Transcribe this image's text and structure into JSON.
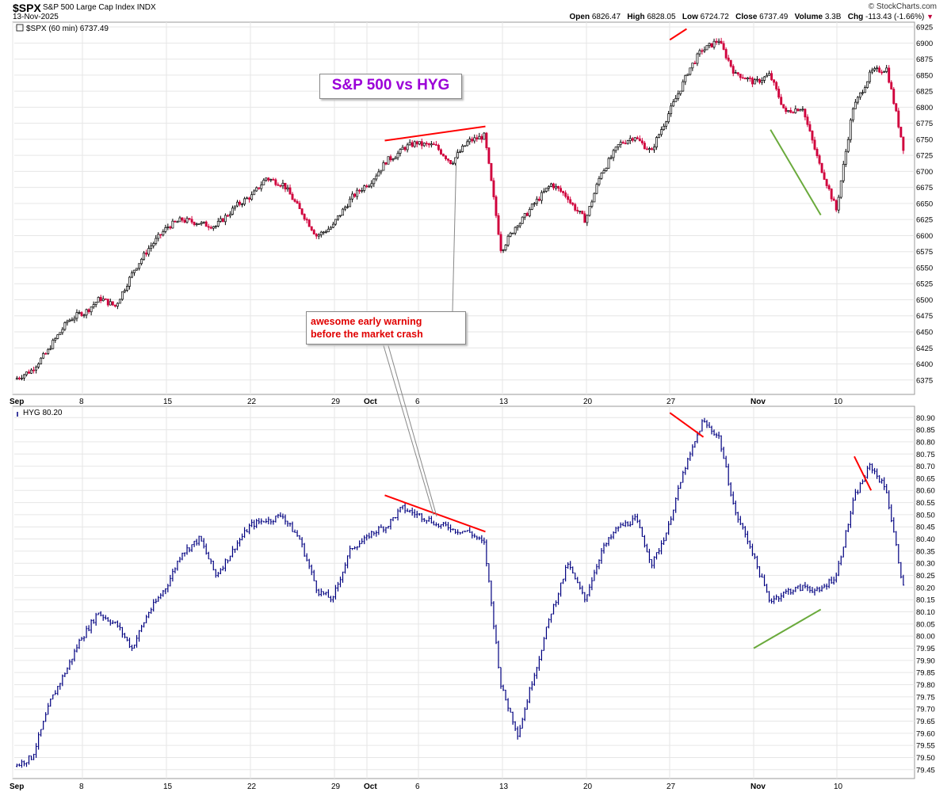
{
  "header": {
    "symbol": "$SPX",
    "description": "S&P 500 Large Cap Index  INDX",
    "date": "13-Nov-2025",
    "brand": "© StockCharts.com",
    "open_label": "Open",
    "open": "6826.47",
    "high_label": "High",
    "high": "6828.05",
    "low_label": "Low",
    "low": "6724.72",
    "close_label": "Close",
    "close": "6737.49",
    "volume_label": "Volume",
    "volume": "3.3B",
    "chg_label": "Chg",
    "chg": "-113.43 (-1.66%)",
    "chg_arrow": "▼"
  },
  "annotations": {
    "title": "S&P 500 vs HYG",
    "warning_line1": "awesome early warning",
    "warning_line2": "before the market crash"
  },
  "colors": {
    "up_candle": "#000000",
    "down_candle": "#d0003c",
    "hyg_bars": "#000080",
    "trend_red": "#ff0000",
    "trend_green": "#6aaa3c",
    "title_purple": "#9b00d8",
    "grid": "#e6e6e6"
  },
  "chart_data": [
    {
      "type": "candlestick",
      "legend": "$SPX (60 min) 6737.49",
      "interval": "60 min",
      "x_tick_labels": [
        "Sep",
        "8",
        "15",
        "22",
        "29",
        "Oct",
        "6",
        "13",
        "20",
        "27",
        "Nov",
        "10"
      ],
      "ylim": [
        6355,
        6930
      ],
      "y_ticks": [
        6375,
        6400,
        6425,
        6450,
        6475,
        6500,
        6525,
        6550,
        6575,
        6600,
        6625,
        6650,
        6675,
        6700,
        6725,
        6750,
        6775,
        6800,
        6825,
        6850,
        6875,
        6900,
        6925
      ],
      "grid": true,
      "approx_path": {
        "x": [
          "Sep 2",
          "Sep 3",
          "Sep 4",
          "Sep 5",
          "Sep 8",
          "Sep 9",
          "Sep 10",
          "Sep 11",
          "Sep 12",
          "Sep 15",
          "Sep 16",
          "Sep 17",
          "Sep 18",
          "Sep 19",
          "Sep 22",
          "Sep 23",
          "Sep 24",
          "Sep 25",
          "Sep 26",
          "Sep 29",
          "Sep 30",
          "Oct 1",
          "Oct 2",
          "Oct 3",
          "Oct 6",
          "Oct 7",
          "Oct 8",
          "Oct 9",
          "Oct 10",
          "Oct 13",
          "Oct 14",
          "Oct 15",
          "Oct 16",
          "Oct 17",
          "Oct 20",
          "Oct 21",
          "Oct 22",
          "Oct 23",
          "Oct 24",
          "Oct 27",
          "Oct 28",
          "Oct 29",
          "Oct 30",
          "Oct 31",
          "Nov 3",
          "Nov 4",
          "Nov 5",
          "Nov 6",
          "Nov 7",
          "Nov 10",
          "Nov 11",
          "Nov 12",
          "Nov 13"
        ],
        "close": [
          6390,
          6420,
          6460,
          6480,
          6500,
          6490,
          6540,
          6580,
          6610,
          6625,
          6620,
          6615,
          6640,
          6660,
          6690,
          6680,
          6640,
          6600,
          6615,
          6655,
          6680,
          6710,
          6730,
          6745,
          6740,
          6715,
          6745,
          6755,
          6580,
          6620,
          6650,
          6680,
          6660,
          6625,
          6700,
          6740,
          6755,
          6730,
          6790,
          6845,
          6890,
          6905,
          6850,
          6840,
          6850,
          6790,
          6800,
          6710,
          6640,
          6800,
          6850,
          6860,
          6737
        ]
      },
      "trendlines": [
        {
          "color": "red",
          "from": [
            "Oct 2",
            6748
          ],
          "to": [
            "Oct 10",
            6770
          ]
        },
        {
          "color": "red",
          "from": [
            "Oct 27",
            6905
          ],
          "to": [
            "Oct 28",
            6922
          ]
        },
        {
          "color": "green",
          "from": [
            "Nov 4",
            6765
          ],
          "to": [
            "Nov 7",
            6632
          ]
        }
      ]
    },
    {
      "type": "bar",
      "legend": "HYG 80.20",
      "x_tick_labels": [
        "Sep",
        "8",
        "15",
        "22",
        "29",
        "Oct",
        "6",
        "13",
        "20",
        "27",
        "Nov",
        "10"
      ],
      "ylim": [
        79.42,
        80.94
      ],
      "y_ticks": [
        79.45,
        79.5,
        79.55,
        79.6,
        79.65,
        79.7,
        79.75,
        79.8,
        79.85,
        79.9,
        79.95,
        80.0,
        80.05,
        80.1,
        80.15,
        80.2,
        80.25,
        80.3,
        80.35,
        80.4,
        80.45,
        80.5,
        80.55,
        80.6,
        80.65,
        80.7,
        80.75,
        80.8,
        80.85,
        80.9
      ],
      "grid": true,
      "approx_path": {
        "x": [
          "Sep 2",
          "Sep 3",
          "Sep 4",
          "Sep 5",
          "Sep 8",
          "Sep 9",
          "Sep 10",
          "Sep 11",
          "Sep 12",
          "Sep 15",
          "Sep 16",
          "Sep 17",
          "Sep 18",
          "Sep 19",
          "Sep 22",
          "Sep 23",
          "Sep 24",
          "Sep 25",
          "Sep 26",
          "Sep 29",
          "Sep 30",
          "Oct 1",
          "Oct 2",
          "Oct 3",
          "Oct 6",
          "Oct 7",
          "Oct 8",
          "Oct 9",
          "Oct 10",
          "Oct 13",
          "Oct 14",
          "Oct 15",
          "Oct 16",
          "Oct 17",
          "Oct 20",
          "Oct 21",
          "Oct 22",
          "Oct 23",
          "Oct 24",
          "Oct 27",
          "Oct 28",
          "Oct 29",
          "Oct 30",
          "Oct 31",
          "Nov 3",
          "Nov 4",
          "Nov 5",
          "Nov 6",
          "Nov 7",
          "Nov 10",
          "Nov 11",
          "Nov 12",
          "Nov 13"
        ],
        "close": [
          79.5,
          79.7,
          79.85,
          80.0,
          80.1,
          80.05,
          79.95,
          80.1,
          80.2,
          80.35,
          80.4,
          80.25,
          80.35,
          80.45,
          80.48,
          80.5,
          80.4,
          80.2,
          80.15,
          80.35,
          80.4,
          80.45,
          80.52,
          80.5,
          80.47,
          80.45,
          80.43,
          80.38,
          79.8,
          79.6,
          79.85,
          80.1,
          80.3,
          80.15,
          80.35,
          80.45,
          80.48,
          80.3,
          80.45,
          80.7,
          80.88,
          80.82,
          80.5,
          80.35,
          80.15,
          80.18,
          80.2,
          80.18,
          80.25,
          80.55,
          80.7,
          80.6,
          80.2
        ]
      },
      "trendlines": [
        {
          "color": "red",
          "from": [
            "Oct 2",
            80.58
          ],
          "to": [
            "Oct 10",
            80.43
          ]
        },
        {
          "color": "red",
          "from": [
            "Oct 27",
            80.92
          ],
          "to": [
            "Oct 29",
            80.82
          ]
        },
        {
          "color": "green",
          "from": [
            "Nov 3",
            79.95
          ],
          "to": [
            "Nov 7",
            80.11
          ]
        },
        {
          "color": "red",
          "from": [
            "Nov 11",
            80.74
          ],
          "to": [
            "Nov 12",
            80.6
          ]
        }
      ]
    }
  ]
}
